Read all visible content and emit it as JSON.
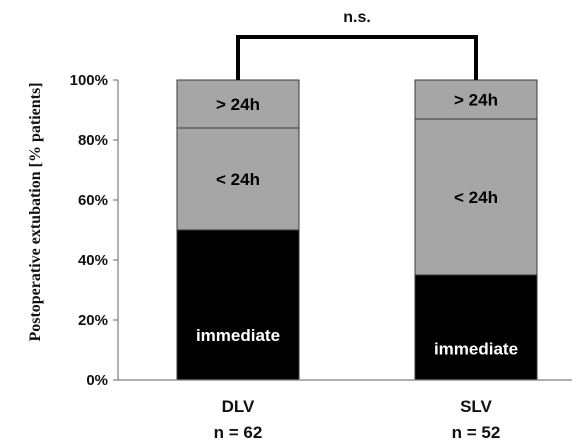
{
  "chart_data": {
    "type": "bar",
    "stacked": true,
    "ylabel": "Postoperative extubation [% patients]",
    "ylim": [
      0,
      100
    ],
    "yticks": [
      "0%",
      "20%",
      "40%",
      "60%",
      "80%",
      "100%"
    ],
    "ytick_values": [
      0,
      20,
      40,
      60,
      80,
      100
    ],
    "grid": false,
    "categories": [
      "DLV",
      "SLV"
    ],
    "category_sublabels": [
      "n = 62",
      "n = 52"
    ],
    "series": [
      {
        "name": "immediate",
        "values": [
          50,
          35
        ],
        "color": "#000000",
        "label_color": "#ffffff"
      },
      {
        "name": "< 24h",
        "values": [
          34,
          52
        ],
        "color": "#a6a6a6",
        "label_color": "#000000"
      },
      {
        "name": "> 24h",
        "values": [
          16,
          13
        ],
        "color": "#a6a6a6",
        "label_color": "#000000"
      }
    ],
    "segment_labels": [
      [
        "immediate",
        "< 24h",
        "> 24h"
      ],
      [
        "immediate",
        "< 24h",
        "> 24h"
      ]
    ],
    "significance": {
      "label": "n.s.",
      "between": [
        "DLV",
        "SLV"
      ]
    }
  }
}
